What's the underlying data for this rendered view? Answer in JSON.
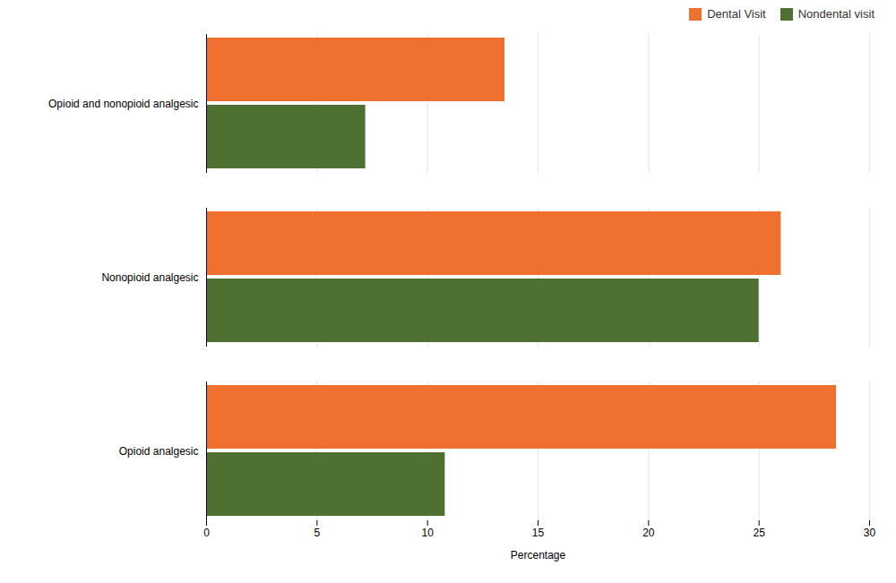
{
  "chart_data": {
    "type": "bar",
    "orientation": "horizontal",
    "categories": [
      "Opioid analgesic",
      "Nonopioid analgesic",
      "Opioid and nonopioid analgesic"
    ],
    "series": [
      {
        "name": "Dental Visit",
        "color": "#F07030",
        "values": [
          28.5,
          26.0,
          13.5
        ]
      },
      {
        "name": "Nondental visit",
        "color": "#4E7030",
        "values": [
          10.8,
          25.0,
          7.2
        ]
      }
    ],
    "xlabel": "Percentage",
    "xlim": [
      0,
      30
    ],
    "xticks": [
      0,
      5,
      10,
      15,
      20,
      25,
      30
    ],
    "grid": true,
    "legend": "upper right"
  }
}
